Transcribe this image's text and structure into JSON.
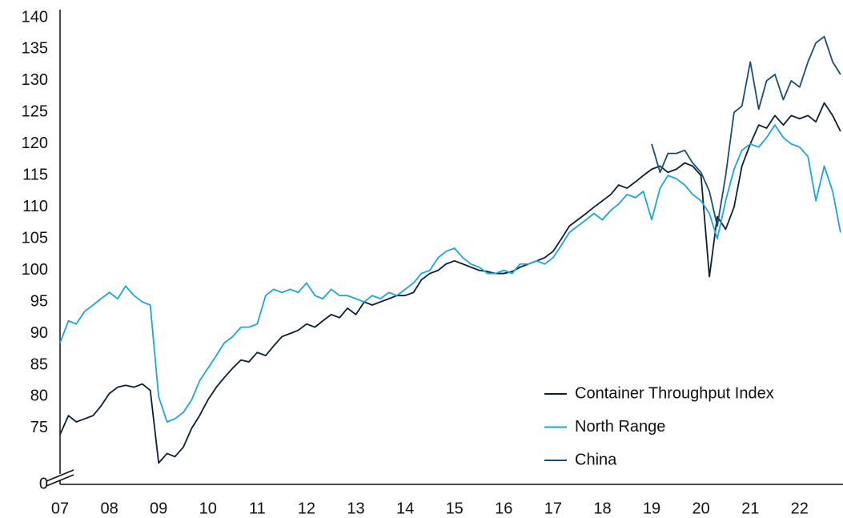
{
  "chart_data": {
    "type": "line",
    "x": [
      2007,
      2007.17,
      2007.33,
      2007.5,
      2007.67,
      2007.83,
      2008,
      2008.17,
      2008.33,
      2008.5,
      2008.67,
      2008.83,
      2009,
      2009.17,
      2009.33,
      2009.5,
      2009.67,
      2009.83,
      2010,
      2010.17,
      2010.33,
      2010.5,
      2010.67,
      2010.83,
      2011,
      2011.17,
      2011.33,
      2011.5,
      2011.67,
      2011.83,
      2012,
      2012.17,
      2012.33,
      2012.5,
      2012.67,
      2012.83,
      2013,
      2013.17,
      2013.33,
      2013.5,
      2013.67,
      2013.83,
      2014,
      2014.17,
      2014.33,
      2014.5,
      2014.67,
      2014.83,
      2015,
      2015.17,
      2015.33,
      2015.5,
      2015.67,
      2015.83,
      2016,
      2016.17,
      2016.33,
      2016.5,
      2016.67,
      2016.83,
      2017,
      2017.17,
      2017.33,
      2017.5,
      2017.67,
      2017.83,
      2018,
      2018.17,
      2018.33,
      2018.5,
      2018.67,
      2018.83,
      2019,
      2019.17,
      2019.33,
      2019.5,
      2019.67,
      2019.83,
      2020,
      2020.17,
      2020.33,
      2020.5,
      2020.67,
      2020.83,
      2021,
      2021.17,
      2021.33,
      2021.5,
      2021.67,
      2021.83,
      2022,
      2022.17,
      2022.33,
      2022.5,
      2022.67,
      2022.83
    ],
    "series": [
      {
        "name": "Container Throughput Index",
        "color": "#0b2033",
        "values": [
          74,
          77,
          76,
          76.5,
          77,
          78.5,
          80.5,
          81.5,
          81.8,
          81.5,
          82,
          81,
          69.5,
          71,
          70.5,
          72,
          75,
          77,
          79.5,
          81.5,
          83,
          84.5,
          85.8,
          85.5,
          87,
          86.5,
          88,
          89.5,
          90,
          90.5,
          91.5,
          91,
          92,
          93,
          92.5,
          94,
          93,
          95,
          94.5,
          95,
          95.5,
          96,
          96,
          96.5,
          98.5,
          99.5,
          100,
          101,
          101.5,
          101,
          100.5,
          100,
          99.8,
          99.5,
          99.5,
          99.8,
          100.5,
          101,
          101.5,
          102,
          103,
          105,
          107,
          108,
          109,
          110,
          111,
          112,
          113.5,
          113,
          114,
          115,
          116,
          116.5,
          115.5,
          116,
          117,
          116.5,
          115,
          99,
          108.5,
          106.5,
          110,
          116.5,
          120,
          123,
          122.5,
          124.5,
          123,
          124.5,
          124,
          124.5,
          123.5,
          126.5,
          124.5,
          122
        ]
      },
      {
        "name": "North Range",
        "color": "#1ca4de",
        "values": [
          88.5,
          92,
          91.5,
          93.5,
          94.5,
          95.5,
          96.5,
          95.5,
          97.5,
          96,
          95,
          94.5,
          80,
          76,
          76.5,
          77.5,
          79.5,
          82.5,
          84.5,
          86.5,
          88.5,
          89.5,
          91,
          91,
          91.5,
          96,
          97,
          96.5,
          97,
          96.5,
          98,
          96,
          95.5,
          97,
          96,
          96,
          95.5,
          95,
          96,
          95.5,
          96.5,
          96,
          97,
          98,
          99.5,
          100,
          102,
          103,
          103.5,
          102,
          101,
          100.5,
          99.5,
          99.5,
          100,
          99.5,
          101,
          101,
          101.5,
          101,
          102,
          104,
          106,
          107,
          108,
          109,
          108,
          109.5,
          110.5,
          112,
          111.5,
          112.5,
          108,
          113,
          115,
          114.5,
          113.5,
          112,
          111,
          109,
          105,
          111,
          116,
          119,
          120,
          119.5,
          121,
          123,
          121,
          120,
          119.5,
          118,
          111,
          116.5,
          112.5,
          106
        ]
      },
      {
        "name": "China",
        "color": "#174f73",
        "values": [
          null,
          null,
          null,
          null,
          null,
          null,
          null,
          null,
          null,
          null,
          null,
          null,
          null,
          null,
          null,
          null,
          null,
          null,
          null,
          null,
          null,
          null,
          null,
          null,
          null,
          null,
          null,
          null,
          null,
          null,
          null,
          null,
          null,
          null,
          null,
          null,
          null,
          null,
          null,
          null,
          null,
          null,
          null,
          null,
          null,
          null,
          null,
          null,
          null,
          null,
          null,
          null,
          null,
          null,
          null,
          null,
          null,
          null,
          null,
          null,
          null,
          null,
          null,
          null,
          null,
          null,
          null,
          null,
          null,
          null,
          null,
          null,
          120,
          115.5,
          118.5,
          118.5,
          119,
          117,
          115.5,
          112.5,
          107,
          115,
          125,
          126,
          133,
          125.5,
          130,
          131,
          127,
          130,
          129,
          133,
          136,
          137,
          133,
          131
        ]
      }
    ],
    "xlim": [
      2007,
      2022.88
    ],
    "xticks": [
      {
        "value": 2007,
        "label": "07"
      },
      {
        "value": 2008,
        "label": "08"
      },
      {
        "value": 2009,
        "label": "09"
      },
      {
        "value": 2010,
        "label": "10"
      },
      {
        "value": 2011,
        "label": "11"
      },
      {
        "value": 2012,
        "label": "12"
      },
      {
        "value": 2013,
        "label": "13"
      },
      {
        "value": 2014,
        "label": "14"
      },
      {
        "value": 2015,
        "label": "15"
      },
      {
        "value": 2016,
        "label": "16"
      },
      {
        "value": 2017,
        "label": "17"
      },
      {
        "value": 2018,
        "label": "18"
      },
      {
        "value": 2019,
        "label": "19"
      },
      {
        "value": 2020,
        "label": "20"
      },
      {
        "value": 2021,
        "label": "21"
      },
      {
        "value": 2022,
        "label": "22"
      }
    ],
    "ylim": [
      0,
      140
    ],
    "y_break": [
      0,
      67
    ],
    "yticks": [
      0,
      75,
      80,
      85,
      90,
      95,
      100,
      105,
      110,
      115,
      120,
      125,
      130,
      135,
      140
    ],
    "grid": false,
    "legend": "lower right"
  }
}
